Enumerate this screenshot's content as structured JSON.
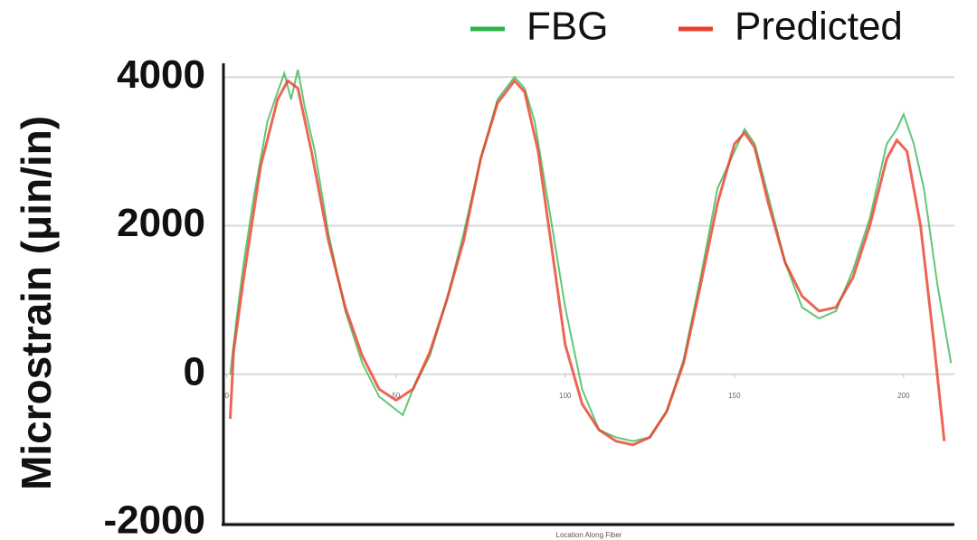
{
  "chart_data": {
    "type": "line",
    "ylabel": "Microstrain (μin/in)",
    "xlabel": "Location Along Fiber",
    "xlim": [
      -1,
      215
    ],
    "xticks": [
      0,
      50,
      100,
      150,
      200
    ],
    "ylim": [
      -2000,
      4100
    ],
    "yticks": [
      -2000,
      0,
      2000,
      4000
    ],
    "grid": true,
    "legend": "top-right",
    "series": [
      {
        "name": "FBG",
        "color": "#2db34a",
        "x": [
          1,
          3,
          5,
          8,
          12,
          15,
          17,
          19,
          21,
          23,
          26,
          30,
          35,
          40,
          45,
          52,
          55,
          60,
          65,
          70,
          75,
          80,
          85,
          88,
          91,
          95,
          100,
          105,
          110,
          115,
          120,
          125,
          130,
          135,
          140,
          145,
          150,
          153,
          156,
          160,
          165,
          170,
          175,
          180,
          185,
          190,
          195,
          198,
          200,
          203,
          206,
          210,
          214
        ],
        "values": [
          0,
          800,
          1500,
          2400,
          3400,
          3800,
          4050,
          3700,
          4100,
          3600,
          3000,
          1900,
          850,
          150,
          -300,
          -550,
          -200,
          250,
          1000,
          1900,
          2900,
          3700,
          4000,
          3850,
          3400,
          2300,
          900,
          -200,
          -750,
          -850,
          -900,
          -850,
          -500,
          200,
          1300,
          2500,
          3000,
          3300,
          3100,
          2400,
          1500,
          900,
          750,
          850,
          1400,
          2100,
          3100,
          3300,
          3500,
          3100,
          2500,
          1200,
          150
        ]
      },
      {
        "name": "Predicted",
        "color": "#e8402a",
        "x": [
          1,
          2,
          5,
          10,
          15,
          18,
          21,
          25,
          30,
          35,
          40,
          45,
          50,
          55,
          60,
          65,
          70,
          75,
          80,
          85,
          88,
          92,
          96,
          100,
          105,
          110,
          115,
          120,
          125,
          130,
          135,
          140,
          145,
          150,
          153,
          156,
          160,
          165,
          170,
          175,
          180,
          185,
          190,
          195,
          198,
          201,
          205,
          209,
          212
        ],
        "values": [
          -600,
          300,
          1300,
          2800,
          3700,
          3950,
          3850,
          3000,
          1800,
          900,
          250,
          -200,
          -350,
          -200,
          300,
          1000,
          1800,
          2900,
          3650,
          3950,
          3800,
          3000,
          1700,
          400,
          -400,
          -750,
          -900,
          -950,
          -850,
          -500,
          150,
          1200,
          2300,
          3100,
          3250,
          3050,
          2300,
          1500,
          1050,
          850,
          900,
          1300,
          2000,
          2900,
          3150,
          3000,
          2000,
          400,
          -900
        ]
      }
    ]
  }
}
